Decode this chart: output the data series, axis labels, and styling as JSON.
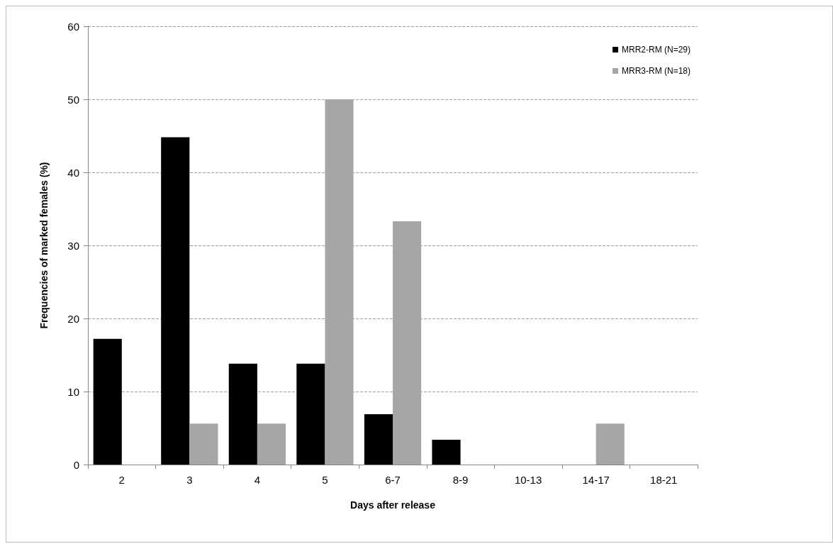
{
  "chart_data": {
    "type": "bar",
    "xlabel": "Days after release",
    "ylabel": "Frequencies of marked females (%)",
    "categories": [
      "2",
      "3",
      "4",
      "5",
      "6-7",
      "8-9",
      "10-13",
      "14-17",
      "18-21"
    ],
    "series": [
      {
        "name": "MRR2-RM (N=29)",
        "color": "#000000",
        "values": [
          17.2,
          44.8,
          13.8,
          13.8,
          6.9,
          3.4,
          0,
          0,
          0
        ]
      },
      {
        "name": "MRR3-RM (N=18)",
        "color": "#a6a6a6",
        "values": [
          0,
          5.6,
          5.6,
          50,
          33.3,
          0,
          0,
          5.6,
          0
        ]
      }
    ],
    "ylim": [
      0,
      60
    ],
    "yticks": [
      0,
      10,
      20,
      30,
      40,
      50,
      60
    ],
    "grid": "y",
    "legend": "top right"
  }
}
